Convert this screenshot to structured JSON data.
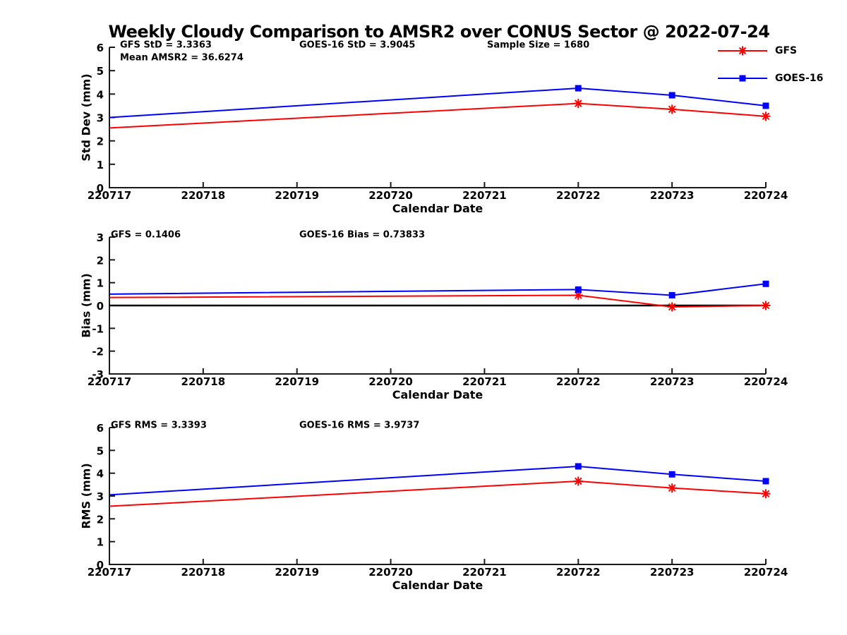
{
  "title": "Weekly Cloudy Comparison to AMSR2 over CONUS Sector @ 2022-07-24",
  "chart_data": {
    "type": "line",
    "title": "Weekly Cloudy Comparison to AMSR2 over CONUS Sector @ 2022-07-24",
    "xlabel": "Calendar Date",
    "x_ticks": [
      220717,
      220718,
      220719,
      220720,
      220721,
      220722,
      220723,
      220724
    ],
    "x_values": [
      220717,
      220722,
      220723,
      220724
    ],
    "axis_color": "#1a1a1a",
    "zero_line_color": "#000000",
    "legend_position": "top-right",
    "grid": false,
    "series_styles": [
      {
        "name": "GFS",
        "color": "#ff0000",
        "marker": "asterisk"
      },
      {
        "name": "GOES-16",
        "color": "#0000ff",
        "marker": "square"
      }
    ],
    "subplots": [
      {
        "id": "stddev",
        "ylabel": "Std Dev (mm)",
        "ylim": [
          0,
          6
        ],
        "ytick_step": 1,
        "zero_line": false,
        "annotations": [
          {
            "text": "GFS StD = 3.3363",
            "col": 0,
            "row": 0
          },
          {
            "text": "GOES-16 StD = 3.9045",
            "col": 1,
            "row": 0
          },
          {
            "text": "Sample Size = 1680",
            "col": 2,
            "row": 0
          },
          {
            "text": "Mean AMSR2 = 36.6274",
            "col": 0,
            "row": 1
          }
        ],
        "series": [
          {
            "name": "GFS",
            "values": [
              2.55,
              3.6,
              3.35,
              3.05
            ]
          },
          {
            "name": "GOES-16",
            "values": [
              3.0,
              4.25,
              3.95,
              3.5
            ]
          }
        ]
      },
      {
        "id": "bias",
        "ylabel": "Bias (mm)",
        "ylim": [
          -3,
          3
        ],
        "ytick_step": 1,
        "zero_line": true,
        "annotations": [
          {
            "text": "GFS = 0.1406",
            "col": 0,
            "row": 0
          },
          {
            "text": "GOES-16 Bias  = 0.73833",
            "col": 1,
            "row": 0
          }
        ],
        "series": [
          {
            "name": "GFS",
            "values": [
              0.35,
              0.45,
              -0.06,
              0.0
            ]
          },
          {
            "name": "GOES-16",
            "values": [
              0.5,
              0.7,
              0.45,
              0.95
            ]
          }
        ]
      },
      {
        "id": "rms",
        "ylabel": "RMS (mm)",
        "ylim": [
          0,
          6
        ],
        "ytick_step": 1,
        "zero_line": false,
        "annotations": [
          {
            "text": "GFS RMS = 3.3393",
            "col": 0,
            "row": 0
          },
          {
            "text": "GOES-16 RMS = 3.9737",
            "col": 1,
            "row": 0
          }
        ],
        "series": [
          {
            "name": "GFS",
            "values": [
              2.55,
              3.65,
              3.35,
              3.1
            ]
          },
          {
            "name": "GOES-16",
            "values": [
              3.05,
              4.3,
              3.95,
              3.65
            ]
          }
        ]
      }
    ]
  }
}
